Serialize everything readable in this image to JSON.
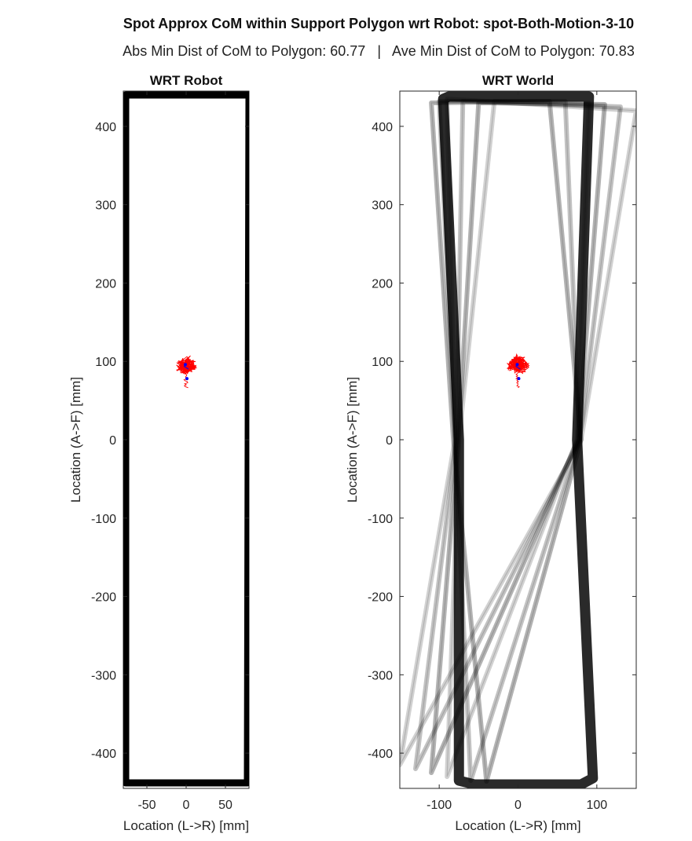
{
  "figure": {
    "title": "Spot Approx CoM within Support Polygon wrt Robot: spot-Both-Motion-3-10",
    "subtitle": "Abs Min Dist of CoM to Polygon: 60.77   |   Ave Min Dist of CoM to Polygon: 70.83"
  },
  "chart_data": [
    {
      "type": "line",
      "title": "WRT Robot",
      "xlabel": "Location (L->R) [mm]",
      "ylabel": "Location (A->F) [mm]",
      "xlim": [
        -80,
        80
      ],
      "ylim": [
        -445,
        445
      ],
      "xticks": [
        -50,
        0,
        50
      ],
      "yticks": [
        -400,
        -300,
        -200,
        -100,
        0,
        100,
        200,
        300,
        400
      ],
      "grid": false,
      "series": [
        {
          "role": "support-polygon",
          "color": "#000000",
          "polygon": [
            [
              -77,
              440
            ],
            [
              80,
              440
            ],
            [
              78,
              -438
            ],
            [
              -77,
              -438
            ]
          ]
        },
        {
          "role": "com-trajectory",
          "color": "#ff0000",
          "center": [
            0,
            96
          ]
        },
        {
          "role": "com-mean",
          "color": "#0000ff",
          "center": [
            0,
            88
          ]
        }
      ]
    },
    {
      "type": "line",
      "title": "WRT World",
      "xlabel": "Location (L->R) [mm]",
      "ylabel": "Location (A->F) [mm]",
      "xlim": [
        -150,
        150
      ],
      "ylim": [
        -445,
        445
      ],
      "xticks": [
        -100,
        0,
        100
      ],
      "yticks": [
        -400,
        -300,
        -200,
        -100,
        0,
        100,
        200,
        300,
        400
      ],
      "grid": false,
      "series": [
        {
          "role": "support-polygon",
          "color": "#2a2a2a",
          "polygon": [
            [
              -95,
              435
            ],
            [
              -88,
              438
            ],
            [
              90,
              438
            ],
            [
              75,
              0
            ],
            [
              95,
              -432
            ],
            [
              80,
              -440
            ],
            [
              -55,
              -440
            ],
            [
              -75,
              -435
            ],
            [
              -75,
              0
            ]
          ]
        },
        {
          "role": "support-polygon-rotated",
          "color": "#000000",
          "polygons": [
            [
              [
                -90,
                435
              ],
              [
                150,
                420
              ],
              [
                80,
                0
              ],
              [
                -150,
                -415
              ],
              [
                -80,
                0
              ]
            ],
            [
              [
                -70,
                432
              ],
              [
                130,
                425
              ],
              [
                78,
                0
              ],
              [
                -130,
                -420
              ],
              [
                -78,
                0
              ]
            ],
            [
              [
                -50,
                430
              ],
              [
                110,
                428
              ],
              [
                76,
                0
              ],
              [
                -110,
                -425
              ],
              [
                -76,
                0
              ]
            ],
            [
              [
                -30,
                432
              ],
              [
                90,
                430
              ],
              [
                75,
                0
              ],
              [
                -90,
                -430
              ],
              [
                -75,
                0
              ]
            ],
            [
              [
                -100,
                432
              ],
              [
                60,
                432
              ],
              [
                78,
                0
              ],
              [
                -60,
                -435
              ],
              [
                -80,
                0
              ]
            ],
            [
              [
                -110,
                430
              ],
              [
                40,
                432
              ],
              [
                80,
                0
              ],
              [
                -40,
                -436
              ],
              [
                -82,
                0
              ]
            ]
          ]
        },
        {
          "role": "com-trajectory",
          "color": "#ff0000",
          "center": [
            0,
            96
          ]
        },
        {
          "role": "com-mean",
          "color": "#0000ff",
          "center": [
            0,
            88
          ]
        }
      ]
    }
  ]
}
